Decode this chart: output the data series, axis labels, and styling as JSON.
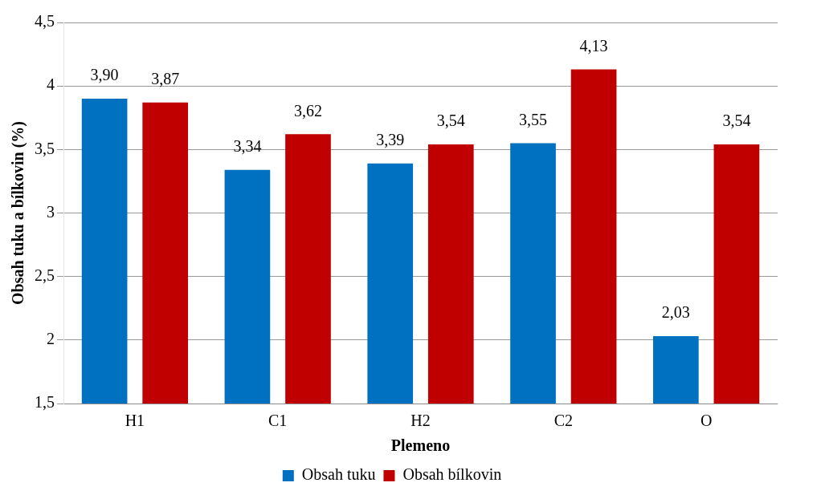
{
  "chart_data": {
    "type": "bar",
    "xlabel": "Plemeno",
    "ylabel": "Obsah tuku a bílkovin (%)",
    "categories": [
      "H1",
      "C1",
      "H2",
      "C2",
      "O"
    ],
    "series": [
      {
        "name": "Obsah tuku",
        "color": "#0070c0",
        "values": [
          3.9,
          3.34,
          3.39,
          3.55,
          2.03
        ],
        "value_labels": [
          "3,90",
          "3,34",
          "3,39",
          "3,55",
          "2,03"
        ]
      },
      {
        "name": "Obsah bílkovin",
        "color": "#c00000",
        "values": [
          3.87,
          3.62,
          3.54,
          4.13,
          3.54
        ],
        "value_labels": [
          "3,87",
          "3,62",
          "3,54",
          "4,13",
          "3,54"
        ]
      }
    ],
    "ylim": [
      1.5,
      4.5
    ],
    "yticks": [
      {
        "value": 1.5,
        "label": "1,5"
      },
      2,
      {
        "value": 2.5,
        "label": "2,5"
      },
      3,
      {
        "value": 3.5,
        "label": "3,5"
      },
      4,
      {
        "value": 4.5,
        "label": "4,5"
      }
    ],
    "grid": "y",
    "legend": "bottom"
  }
}
